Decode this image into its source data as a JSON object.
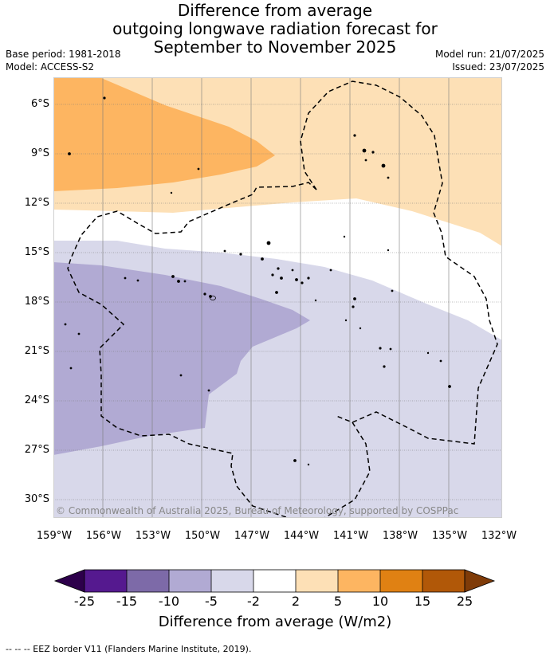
{
  "title": {
    "line1": "Difference from average",
    "line2": "outgoing longwave radiation forecast for",
    "line3": "September to November 2025"
  },
  "meta": {
    "base_period": "Base period: 1981-2018",
    "model": "Model: ACCESS-S2",
    "model_run": "Model run: 21/07/2025",
    "issued": "Issued: 23/07/2025"
  },
  "map": {
    "lat_ticks": [
      "6°S",
      "9°S",
      "12°S",
      "15°S",
      "18°S",
      "21°S",
      "24°S",
      "27°S",
      "30°S"
    ],
    "lon_ticks": [
      "159°W",
      "156°W",
      "153°W",
      "150°W",
      "147°W",
      "144°W",
      "141°W",
      "138°W",
      "135°W",
      "132°W"
    ],
    "copyright": "© Commonwealth of Australia 2025, Bureau of Meteorology, supported by COSPPac",
    "colors": {
      "anom_pos_2_5": "#fde0b6",
      "anom_pos_5_10": "#fdb561",
      "anom_neg_5_2": "#d8d8ea",
      "anom_neg_10_5": "#b1aad3"
    }
  },
  "colorbar": {
    "ticks": [
      "-25",
      "-15",
      "-10",
      "-5",
      "-2",
      "2",
      "5",
      "10",
      "15",
      "25"
    ],
    "colors": [
      "#55198f",
      "#7d6aa8",
      "#b1aad3",
      "#d8d8ea",
      "#ffffff",
      "#fde0b6",
      "#fdb561",
      "#e08113",
      "#b15808"
    ],
    "under_color": "#2d004b",
    "over_color": "#7f3b08",
    "label": "Difference from average (W/m2)"
  },
  "footnote": "--  --  -- EEZ border V11 (Flanders Marine Institute, 2019)."
}
